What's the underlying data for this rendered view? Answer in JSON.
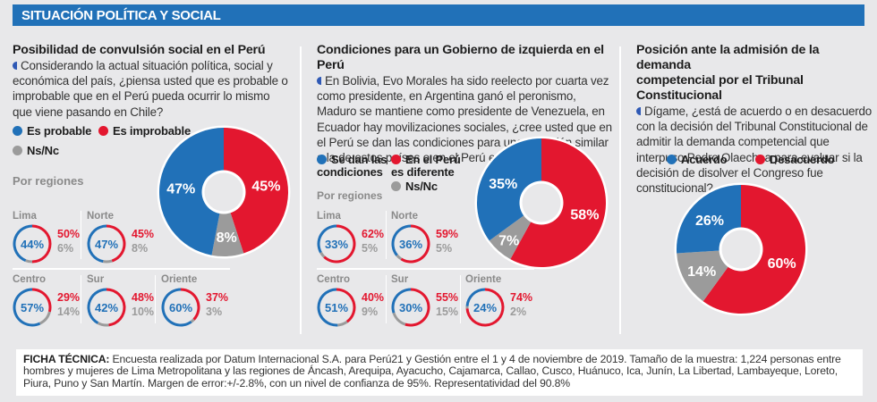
{
  "header": {
    "title": "SITUACIÓN POLÍTICA Y SOCIAL"
  },
  "colors": {
    "blue": "#2171b8",
    "red": "#e3172f",
    "gray": "#9b9b9b",
    "header_bg": "#2171b8",
    "bg": "#e8e8ea"
  },
  "panels": [
    {
      "title": "Posibilidad de convulsión social en el Perú",
      "question": "Considerando la actual situación política, social y económica del país, ¿piensa usted que es probable o improbable que en el Perú pueda ocurrir lo mismo que viene pasando en Chile?",
      "legend": {
        "blue": "Es probable",
        "red": "Es improbable",
        "gray": "Ns/Nc"
      },
      "por_regiones": "Por regiones"
    },
    {
      "title": "Condiciones para un Gobierno de izquierda en el Perú",
      "question": "En Bolivia, Evo Morales ha sido reelecto por cuarta vez como presidente, en Argentina ganó el peronismo, Maduro se mantiene como presidente de Venezuela, en Ecuador hay movilizaciones sociales, ¿cree usted que en el Perú se dan las condiciones para una situación similar a la de estos países o en el Perú es diferente?",
      "legend": {
        "blue_line1": "Se dan las",
        "blue_line2": "condiciones",
        "red_line1": "En el Perú",
        "red_line2": "es diferente",
        "gray": "Ns/Nc"
      },
      "por_regiones": "Por regiones"
    },
    {
      "title_line1": "Posición ante la admisión de la demanda",
      "title_line2": "competencial por el Tribunal Constitucional",
      "question": "Dígame, ¿está de acuerdo o en desacuerdo con la decisión del Tribunal Constitucional de admitir la demanda competencial que interpuso Pedro Olaechea para evaluar si la decisión de disolver el Congreso fue constitucional?",
      "legend": {
        "blue": "Acuerdo",
        "red": "Desacuerdo"
      }
    }
  ],
  "chart_data": [
    {
      "type": "pie",
      "title": "Posibilidad de convulsión social en el Perú",
      "categories": [
        "Es probable",
        "Es improbable",
        "Ns/Nc"
      ],
      "values": [
        47,
        45,
        8
      ],
      "labels": [
        "47%",
        "45%",
        "8%"
      ],
      "regions": [
        {
          "name": "Lima",
          "blue": 44,
          "red": 50,
          "gray": 6,
          "blue_label": "44%",
          "red_label": "50%",
          "gray_label": "6%"
        },
        {
          "name": "Norte",
          "blue": 47,
          "red": 45,
          "gray": 8,
          "blue_label": "47%",
          "red_label": "45%",
          "gray_label": "8%"
        },
        {
          "name": "Centro",
          "blue": 57,
          "red": 29,
          "gray": 14,
          "blue_label": "57%",
          "red_label": "29%",
          "gray_label": "14%"
        },
        {
          "name": "Sur",
          "blue": 42,
          "red": 48,
          "gray": 10,
          "blue_label": "42%",
          "red_label": "48%",
          "gray_label": "10%"
        },
        {
          "name": "Oriente",
          "blue": 60,
          "red": 37,
          "gray": 3,
          "blue_label": "60%",
          "red_label": "37%",
          "gray_label": "3%"
        }
      ]
    },
    {
      "type": "pie",
      "title": "Condiciones para un Gobierno de izquierda en el Perú",
      "categories": [
        "Se dan las condiciones",
        "En el Perú es diferente",
        "Ns/Nc"
      ],
      "values": [
        35,
        58,
        7
      ],
      "labels": [
        "35%",
        "58%",
        "7%"
      ],
      "regions": [
        {
          "name": "Lima",
          "blue": 33,
          "red": 62,
          "gray": 5,
          "blue_label": "33%",
          "red_label": "62%",
          "gray_label": "5%"
        },
        {
          "name": "Norte",
          "blue": 36,
          "red": 59,
          "gray": 5,
          "blue_label": "36%",
          "red_label": "59%",
          "gray_label": "5%"
        },
        {
          "name": "Centro",
          "blue": 51,
          "red": 40,
          "gray": 9,
          "blue_label": "51%",
          "red_label": "40%",
          "gray_label": "9%"
        },
        {
          "name": "Sur",
          "blue": 30,
          "red": 55,
          "gray": 15,
          "blue_label": "30%",
          "red_label": "55%",
          "gray_label": "15%"
        },
        {
          "name": "Oriente",
          "blue": 24,
          "red": 74,
          "gray": 2,
          "blue_label": "24%",
          "red_label": "74%",
          "gray_label": "2%"
        }
      ]
    },
    {
      "type": "pie",
      "title": "Posición ante la admisión de la demanda competencial por el Tribunal Constitucional",
      "categories": [
        "Acuerdo",
        "Desacuerdo",
        "(sin etiqueta)"
      ],
      "values": [
        26,
        60,
        14
      ],
      "labels": [
        "26%",
        "60%",
        "14%"
      ]
    }
  ],
  "footer": {
    "label": "FICHA TÉCNICA:",
    "text": " Encuesta realizada por Datum Internacional S.A. para Perú21 y Gestión entre el 1 y 4 de noviembre de 2019. Tamaño de la muestra: 1,224 personas entre hombres y mujeres de Lima Metropolitana y las regiones de Áncash, Arequipa, Ayacucho, Cajamarca, Callao, Cusco, Huánuco, Ica, Junín, La Libertad, Lambayeque, Loreto, Piura, Puno y San Martín. Margen de error:+/-2.8%, con un nivel de confianza de 95%. Representatividad del 90.8%"
  }
}
